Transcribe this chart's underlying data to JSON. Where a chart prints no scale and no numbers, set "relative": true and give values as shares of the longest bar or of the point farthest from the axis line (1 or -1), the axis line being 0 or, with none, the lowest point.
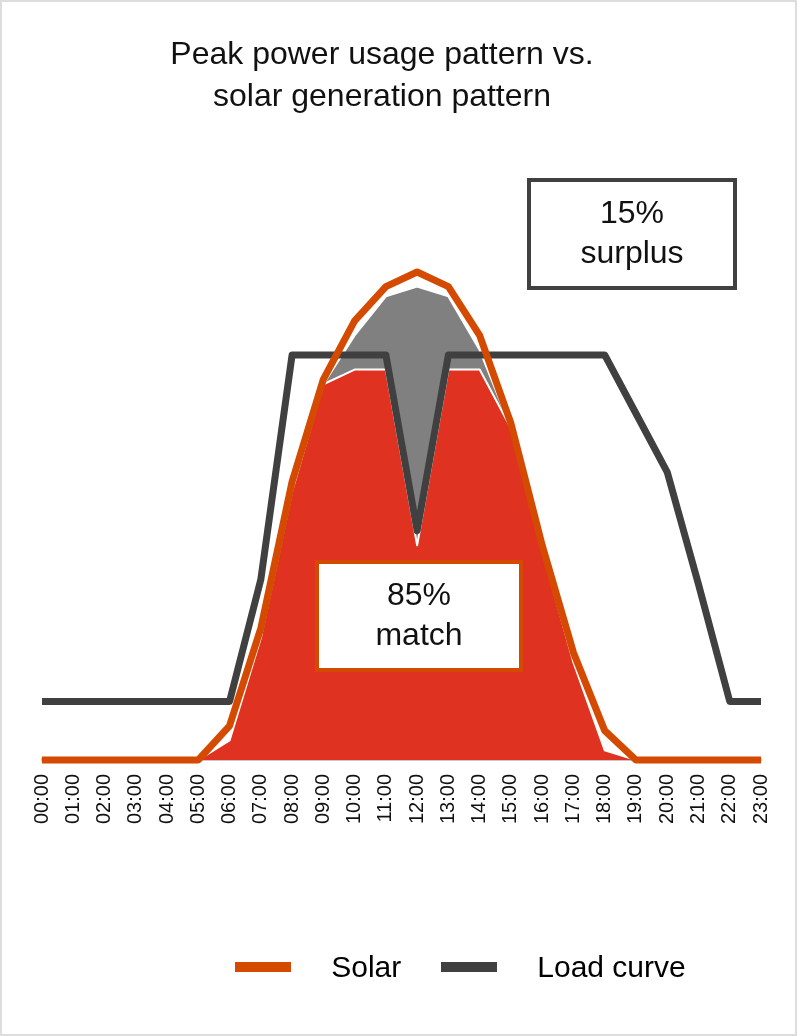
{
  "chart_data": {
    "type": "line",
    "title": "Peak power usage pattern vs. solar generation pattern",
    "relative": true,
    "categories": [
      "00:00",
      "01:00",
      "02:00",
      "03:00",
      "04:00",
      "05:00",
      "06:00",
      "07:00",
      "08:00",
      "09:00",
      "10:00",
      "11:00",
      "12:00",
      "13:00",
      "14:00",
      "15:00",
      "16:00",
      "17:00",
      "18:00",
      "19:00",
      "20:00",
      "21:00",
      "22:00",
      "23:00"
    ],
    "series": [
      {
        "type": "area",
        "color": "#808080",
        "values": [
          0,
          0,
          0,
          0,
          0,
          0,
          0.04,
          0.25,
          0.55,
          0.77,
          0.87,
          0.95,
          0.97,
          0.95,
          0.84,
          0.68,
          0.43,
          0.2,
          0.02,
          0,
          0,
          0,
          0,
          0
        ]
      },
      {
        "type": "area",
        "color": "#e03220",
        "values": [
          0,
          0,
          0,
          0,
          0,
          0,
          0.04,
          0.25,
          0.55,
          0.77,
          0.8,
          0.8,
          0.44,
          0.8,
          0.8,
          0.68,
          0.43,
          0.2,
          0.02,
          0,
          0,
          0,
          0,
          0
        ]
      },
      {
        "name": "Solar",
        "color": "#d44a00",
        "values": [
          0,
          0,
          0,
          0,
          0,
          0,
          0.07,
          0.27,
          0.57,
          0.78,
          0.9,
          0.97,
          1,
          0.97,
          0.87,
          0.69,
          0.44,
          0.22,
          0.06,
          0,
          0,
          0,
          0,
          0
        ]
      },
      {
        "name": "Load curve",
        "color": "#404040",
        "values": [
          0.12,
          0.12,
          0.12,
          0.12,
          0.12,
          0.12,
          0.12,
          0.37,
          0.83,
          0.83,
          0.83,
          0.83,
          0.47,
          0.83,
          0.83,
          0.83,
          0.83,
          0.83,
          0.83,
          0.71,
          0.59,
          0.36,
          0.12,
          0.12
        ]
      }
    ],
    "annotations": [
      "15%\nsurplus",
      "85%\nmatch"
    ],
    "grid": false,
    "legend": "bottom",
    "marker": "none",
    "line_style": "solid"
  }
}
